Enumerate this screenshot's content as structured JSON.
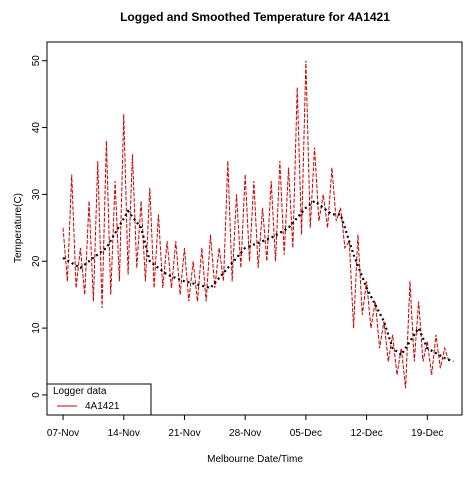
{
  "chart_data": {
    "type": "line",
    "title": "Logged and Smoothed Temperature for 4A1421",
    "xlabel": "Melbourne Date/Time",
    "ylabel": "Temperature(C)",
    "xlim": [
      -1.85,
      46
    ],
    "ylim": [
      -3,
      52.8
    ],
    "xticks": [
      {
        "value": 0,
        "label": "07-Nov"
      },
      {
        "value": 7,
        "label": "14-Nov"
      },
      {
        "value": 14,
        "label": "21-Nov"
      },
      {
        "value": 21,
        "label": "28-Nov"
      },
      {
        "value": 28,
        "label": "05-Dec"
      },
      {
        "value": 35,
        "label": "12-Dec"
      },
      {
        "value": 42,
        "label": "19-Dec"
      }
    ],
    "yticks": [
      0,
      10,
      20,
      30,
      40,
      50
    ],
    "legend": {
      "title": "Logger data",
      "position": "bottomleft"
    },
    "series": [
      {
        "name": "4A1421",
        "color": "#cc0000",
        "x": [
          0,
          0.5,
          1,
          1.5,
          2,
          2.5,
          3,
          3.5,
          4,
          4.5,
          5,
          5.5,
          6,
          6.5,
          7,
          7.5,
          8,
          8.5,
          9,
          9.5,
          10,
          10.5,
          11,
          11.5,
          12,
          12.5,
          13,
          13.5,
          14,
          14.5,
          15,
          15.5,
          16,
          16.5,
          17,
          17.5,
          18,
          18.5,
          19,
          19.5,
          20,
          20.5,
          21,
          21.5,
          22,
          22.5,
          23,
          23.5,
          24,
          24.5,
          25,
          25.5,
          26,
          26.5,
          27,
          27.5,
          28,
          28.5,
          29,
          29.5,
          30,
          30.5,
          31,
          31.5,
          32,
          32.5,
          33,
          33.5,
          34,
          34.5,
          35,
          35.5,
          36,
          36.5,
          37,
          37.5,
          38,
          38.5,
          39,
          39.5,
          40,
          40.5,
          41,
          41.5,
          42,
          42.5,
          43,
          43.5,
          44,
          44.5
        ],
        "values": [
          25,
          17,
          33,
          16,
          22,
          15,
          29,
          14,
          35,
          13,
          38,
          15,
          32,
          17,
          42,
          18,
          36,
          19,
          29,
          17,
          31,
          16,
          27,
          16,
          23,
          16,
          23,
          15,
          22,
          14,
          20,
          14,
          22,
          14,
          24,
          16,
          22,
          17,
          35,
          17,
          30,
          19,
          33,
          20,
          32,
          19,
          28,
          20,
          32,
          20,
          35,
          21,
          34,
          22,
          46,
          24,
          50,
          25,
          37,
          26,
          30,
          25,
          34,
          26,
          28,
          22,
          23,
          10,
          24,
          12,
          17,
          10,
          14,
          7,
          11,
          5,
          9,
          3,
          7,
          1,
          17,
          5,
          14,
          5,
          8,
          3,
          9,
          4,
          7,
          5
        ]
      },
      {
        "color": "#000000",
        "x": [
          0,
          2,
          5,
          7.5,
          9,
          10,
          12,
          14,
          17,
          19,
          21,
          24,
          26,
          28,
          29,
          31,
          32,
          33.5,
          35,
          37,
          38,
          39,
          40,
          41,
          42,
          44,
          45
        ],
        "values": [
          20.5,
          19,
          22,
          27.5,
          25,
          20,
          18,
          17,
          16,
          19,
          22,
          23.5,
          25,
          28,
          29,
          27,
          27,
          21,
          16,
          11,
          7,
          6,
          8,
          10,
          7,
          5.5,
          5
        ]
      }
    ]
  }
}
